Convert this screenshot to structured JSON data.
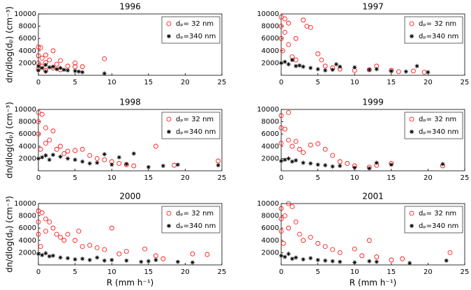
{
  "chart_data": [
    {
      "type": "scatter",
      "title": "1996",
      "ylabel": "dn/dlog(dₚ) (cm⁻³)",
      "xlim": [
        0,
        25
      ],
      "xticks": [
        0,
        5,
        10,
        15,
        20,
        25
      ],
      "ylim": [
        0,
        10000
      ],
      "yticks": [
        2000,
        4000,
        6000,
        8000,
        10000
      ],
      "series": [
        {
          "name": "dₚ= 32 nm",
          "color": "#ff0000",
          "x": [
            0,
            0,
            0,
            0,
            0.3,
            0.5,
            0.5,
            1,
            1,
            1,
            1.5,
            2,
            2,
            2.5,
            3,
            3,
            4,
            5,
            5,
            6,
            9
          ],
          "values": [
            4600,
            3200,
            2000,
            1000,
            4500,
            2800,
            1500,
            3300,
            2100,
            800,
            2500,
            4000,
            1200,
            1800,
            2400,
            900,
            1500,
            1400,
            2000,
            1400,
            2700
          ]
        },
        {
          "name": "dₚ=340 nm",
          "color": "#000000",
          "x": [
            0,
            0,
            0.5,
            1,
            1,
            1.5,
            2,
            2.5,
            3,
            3.5,
            4,
            5,
            5.5,
            6,
            9
          ],
          "values": [
            1500,
            800,
            1200,
            1700,
            600,
            1300,
            1400,
            1000,
            1200,
            900,
            800,
            700,
            600,
            500,
            300
          ]
        }
      ]
    },
    {
      "type": "scatter",
      "title": "1997",
      "xlim": [
        0,
        25
      ],
      "xticks": [
        0,
        5,
        10,
        15,
        20,
        25
      ],
      "ylim": [
        0,
        10000
      ],
      "yticks": [
        2000,
        4000,
        6000,
        8000,
        10000
      ],
      "series": [
        {
          "name": "dₚ= 32 nm",
          "color": "#ff0000",
          "x": [
            0,
            0,
            0,
            0.2,
            0.5,
            0.5,
            1,
            1,
            1.5,
            2,
            2,
            3,
            3.5,
            4,
            5,
            5.5,
            6,
            7,
            8,
            10,
            12,
            13,
            15,
            16,
            18,
            19.5
          ],
          "values": [
            9500,
            8000,
            6000,
            4000,
            9200,
            7000,
            8500,
            5000,
            3000,
            6000,
            2500,
            9000,
            8000,
            7800,
            3500,
            2500,
            1500,
            1200,
            1000,
            800,
            900,
            1500,
            800,
            600,
            700,
            500
          ]
        },
        {
          "name": "dₚ=340 nm",
          "color": "#000000",
          "x": [
            0,
            0.5,
            1,
            1.5,
            2,
            2.5,
            3,
            4,
            5,
            6,
            7,
            7.5,
            8,
            10,
            12,
            13,
            15,
            17,
            18.5,
            20
          ],
          "values": [
            2000,
            2200,
            1800,
            2500,
            1500,
            1600,
            1400,
            1200,
            1000,
            800,
            900,
            1800,
            1400,
            1300,
            900,
            1000,
            700,
            600,
            1500,
            500
          ]
        }
      ]
    },
    {
      "type": "scatter",
      "title": "1998",
      "ylabel": "dn/dlog(dₚ) (cm⁻³)",
      "xlim": [
        0,
        25
      ],
      "xticks": [
        0,
        5,
        10,
        15,
        20,
        25
      ],
      "ylim": [
        0,
        10000
      ],
      "yticks": [
        2000,
        4000,
        6000,
        8000,
        10000
      ],
      "series": [
        {
          "name": "dₚ= 32 nm",
          "color": "#ff0000",
          "x": [
            0,
            0,
            0,
            0.3,
            0.5,
            1,
            1,
            1.5,
            2,
            2.5,
            3,
            3.5,
            4,
            5,
            6,
            7,
            8,
            9,
            10,
            11,
            12,
            13,
            16,
            18.5,
            24.5
          ],
          "values": [
            9500,
            8000,
            6000,
            3500,
            9200,
            7000,
            4500,
            5000,
            6500,
            3500,
            4000,
            2800,
            3200,
            3300,
            3500,
            2500,
            2000,
            1800,
            1500,
            1200,
            1000,
            800,
            4000,
            900,
            1600
          ]
        },
        {
          "name": "dₚ=340 nm",
          "color": "#000000",
          "x": [
            0,
            0.5,
            1,
            1.5,
            2,
            3,
            4,
            5,
            6,
            7,
            8,
            9,
            10,
            11,
            12,
            13,
            15,
            17,
            19,
            24.5
          ],
          "values": [
            2000,
            2200,
            2500,
            1800,
            2600,
            2300,
            2000,
            1800,
            1500,
            1200,
            1300,
            2700,
            1000,
            2200,
            1100,
            2800,
            600,
            800,
            1000,
            900
          ]
        }
      ]
    },
    {
      "type": "scatter",
      "title": "1999",
      "xlim": [
        0,
        25
      ],
      "xticks": [
        0,
        5,
        10,
        15,
        20,
        25
      ],
      "ylim": [
        0,
        10000
      ],
      "yticks": [
        2000,
        4000,
        6000,
        8000,
        10000
      ],
      "series": [
        {
          "name": "dₚ= 32 nm",
          "color": "#ff0000",
          "x": [
            0,
            0,
            0,
            0.5,
            1,
            1,
            1.5,
            2,
            2.5,
            3,
            4,
            5,
            6,
            7,
            8,
            9,
            10,
            12,
            13,
            15,
            22
          ],
          "values": [
            9000,
            7000,
            4500,
            6800,
            9500,
            5000,
            4000,
            4800,
            3500,
            3000,
            4200,
            4400,
            3500,
            2500,
            1500,
            1200,
            800,
            600,
            900,
            1200,
            800
          ]
        },
        {
          "name": "dₚ=340 nm",
          "color": "#000000",
          "x": [
            0,
            0.5,
            1,
            1.5,
            2,
            3,
            4,
            5,
            6,
            7,
            8,
            10,
            12,
            13,
            15,
            22
          ],
          "values": [
            1600,
            1800,
            2000,
            1500,
            1700,
            1300,
            1200,
            1000,
            900,
            700,
            800,
            500,
            400,
            1300,
            1000,
            1100
          ]
        }
      ]
    },
    {
      "type": "scatter",
      "title": "2000",
      "ylabel": "dn/dlog(dₚ) (cm⁻³)",
      "xlabel": "R (mm h⁻¹)",
      "xlim": [
        0,
        25
      ],
      "xticks": [
        0,
        5,
        10,
        15,
        20,
        25
      ],
      "ylim": [
        0,
        10000
      ],
      "yticks": [
        2000,
        4000,
        6000,
        8000,
        10000
      ],
      "series": [
        {
          "name": "dₚ= 32 nm",
          "color": "#ff0000",
          "x": [
            0,
            0,
            0,
            0.3,
            0.5,
            1,
            1,
            1.5,
            2,
            2.5,
            3,
            3.5,
            4,
            5,
            5.5,
            6,
            7,
            8,
            9,
            10,
            11,
            12,
            14.5,
            16,
            17,
            21,
            23
          ],
          "values": [
            8800,
            7000,
            5000,
            3000,
            8500,
            7500,
            5500,
            7000,
            6000,
            5000,
            4500,
            4000,
            5000,
            4000,
            5500,
            3000,
            3200,
            2800,
            2500,
            6000,
            1800,
            2200,
            2600,
            1500,
            1000,
            1800,
            1700
          ]
        },
        {
          "name": "dₚ=340 nm",
          "color": "#000000",
          "x": [
            0,
            0.5,
            1,
            1.5,
            2,
            3,
            4,
            5,
            6,
            7,
            8,
            9,
            10,
            12,
            14,
            15,
            16,
            19,
            21
          ],
          "values": [
            1800,
            1600,
            1900,
            1400,
            1500,
            1200,
            1100,
            900,
            1000,
            800,
            1200,
            700,
            800,
            700,
            500,
            600,
            800,
            500,
            400
          ]
        }
      ]
    },
    {
      "type": "scatter",
      "title": "2001",
      "xlabel": "R (mm h⁻¹)",
      "xlim": [
        0,
        25
      ],
      "xticks": [
        0,
        5,
        10,
        15,
        20,
        25
      ],
      "ylim": [
        0,
        10000
      ],
      "yticks": [
        2000,
        4000,
        6000,
        8000,
        10000
      ],
      "series": [
        {
          "name": "dₚ= 32 nm",
          "color": "#ff0000",
          "x": [
            0,
            0,
            0,
            0.3,
            0.5,
            1,
            1,
            1.5,
            2,
            2.5,
            3,
            4,
            5,
            6,
            7,
            8,
            10,
            11,
            12,
            13,
            15,
            16.5,
            23
          ],
          "values": [
            9200,
            7500,
            5500,
            3500,
            8000,
            10000,
            6000,
            9500,
            7000,
            5000,
            4000,
            4500,
            3500,
            3000,
            2500,
            2000,
            2600,
            1500,
            4000,
            1300,
            800,
            1000,
            2000
          ]
        },
        {
          "name": "dₚ=340 nm",
          "color": "#000000",
          "x": [
            0,
            0.5,
            1,
            1.5,
            2,
            3,
            4,
            5,
            6,
            7,
            8,
            10,
            12,
            13,
            17.5,
            22.5
          ],
          "values": [
            1500,
            1300,
            1800,
            1000,
            1200,
            900,
            1100,
            800,
            700,
            600,
            500,
            400,
            600,
            500,
            300,
            700
          ]
        }
      ]
    }
  ]
}
